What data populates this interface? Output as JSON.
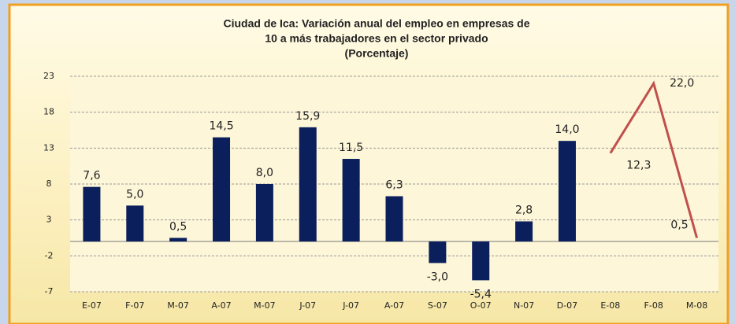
{
  "chart_data": {
    "type": "bar",
    "title": [
      "Ciudad de Ica: Variación anual del empleo en empresas de",
      "10 a más trabajadores  en el sector  privado",
      "(Porcentaje)"
    ],
    "categories": [
      "E-07",
      "F-07",
      "M-07",
      "A-07",
      "M-07",
      "J-07",
      "J-07",
      "A-07",
      "S-07",
      "O-07",
      "N-07",
      "D-07",
      "E-08",
      "F-08",
      "M-08"
    ],
    "series": [
      {
        "type": "bar",
        "color": "#0a1f5c",
        "values": [
          7.6,
          5.0,
          0.5,
          14.5,
          8.0,
          15.9,
          11.5,
          6.3,
          -3.0,
          -5.4,
          2.8,
          14.0,
          null,
          null,
          null
        ],
        "value_labels": [
          "7,6",
          "5,0",
          "0,5",
          "14,5",
          "8,0",
          "15,9",
          "11,5",
          "6,3",
          "-3,0",
          "-5,4",
          "2,8",
          "14,0",
          null,
          null,
          null
        ]
      },
      {
        "type": "line",
        "color": "#c0504d",
        "values": [
          null,
          null,
          null,
          null,
          null,
          null,
          null,
          null,
          null,
          null,
          null,
          null,
          12.3,
          22.0,
          0.5
        ],
        "value_labels": [
          null,
          null,
          null,
          null,
          null,
          null,
          null,
          null,
          null,
          null,
          null,
          null,
          "12,3",
          "22,0",
          "0,5"
        ]
      }
    ],
    "ylim": [
      -7,
      23
    ],
    "yticks": [
      23,
      18,
      13,
      8,
      3,
      -2,
      -7
    ],
    "grid": true
  }
}
